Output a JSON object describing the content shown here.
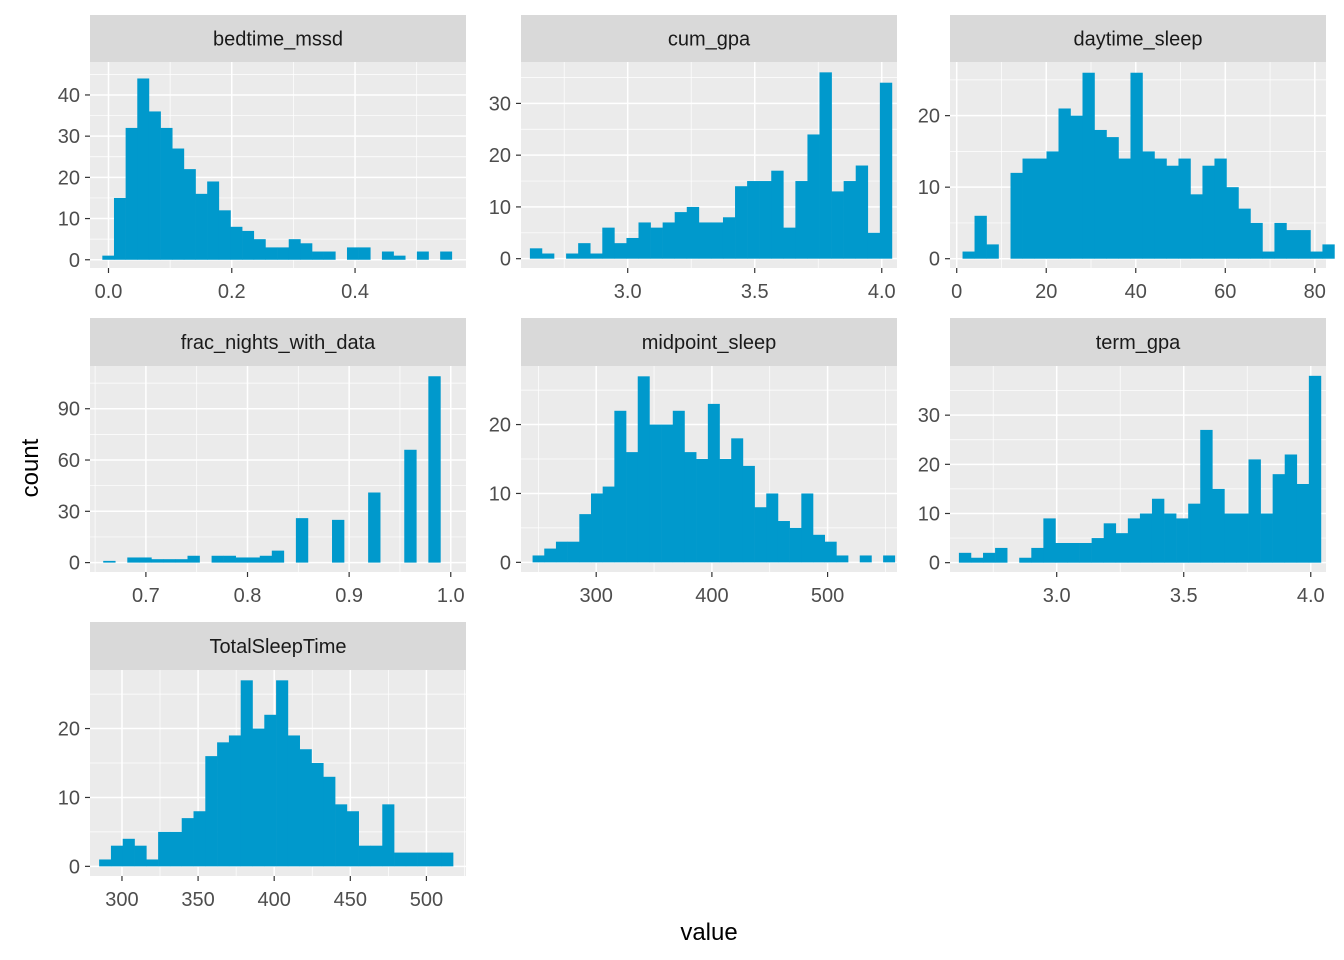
{
  "chart_data": {
    "type": "bar",
    "subtype": "faceted-histogram",
    "xlabel": "value",
    "ylabel": "count",
    "fill_color": "#0099CC",
    "panel_background": "#EBEBEB",
    "strip_background": "#D9D9D9",
    "grid_color": "#FFFFFF",
    "panels": [
      {
        "title": "bedtime_mssd",
        "xlim": [
          -0.03,
          0.58
        ],
        "ylim": [
          -2,
          48
        ],
        "xticks": [
          0.0,
          0.2,
          0.4
        ],
        "xtick_labels": [
          "0.0",
          "0.2",
          "0.4"
        ],
        "yticks": [
          0,
          10,
          20,
          30,
          40
        ],
        "ytick_labels": [
          "0",
          "10",
          "20",
          "30",
          "40"
        ],
        "bin_start": -0.01,
        "bin_width": 0.0189,
        "values": [
          1,
          15,
          32,
          44,
          36,
          32,
          27,
          22,
          16,
          19,
          12,
          8,
          7,
          5,
          3,
          3,
          5,
          4,
          2,
          2,
          0,
          3,
          3,
          0,
          2,
          1,
          0,
          2,
          0,
          2
        ]
      },
      {
        "title": "cum_gpa",
        "xlim": [
          2.58,
          4.06
        ],
        "ylim": [
          -1.8,
          38
        ],
        "xticks": [
          3.0,
          3.5,
          4.0
        ],
        "xtick_labels": [
          "3.0",
          "3.5",
          "4.0"
        ],
        "yticks": [
          0,
          10,
          20,
          30
        ],
        "ytick_labels": [
          "0",
          "10",
          "20",
          "30"
        ],
        "bin_start": 2.615,
        "bin_width": 0.0475,
        "values": [
          2,
          1,
          0,
          1,
          3,
          1,
          6,
          3,
          4,
          7,
          6,
          7,
          9,
          10,
          7,
          7,
          8,
          14,
          15,
          15,
          17,
          6,
          15,
          24,
          36,
          13,
          15,
          18,
          5,
          34
        ]
      },
      {
        "title": "daytime_sleep",
        "xlim": [
          -1.5,
          82.5
        ],
        "ylim": [
          -1.3,
          27.5
        ],
        "xticks": [
          0,
          20,
          40,
          60,
          80
        ],
        "xtick_labels": [
          "0",
          "20",
          "40",
          "60",
          "80"
        ],
        "yticks": [
          0,
          10,
          20
        ],
        "ytick_labels": [
          "0",
          "10",
          "20"
        ],
        "bin_start": 1.3,
        "bin_width": 2.68,
        "values": [
          1,
          6,
          2,
          0,
          12,
          14,
          14,
          15,
          21,
          20,
          26,
          18,
          17,
          14,
          26,
          15,
          14,
          13,
          14,
          9,
          13,
          14,
          10,
          7,
          5,
          1,
          5,
          4,
          4,
          1,
          2
        ]
      },
      {
        "title": "frac_nights_with_data",
        "xlim": [
          0.645,
          1.015
        ],
        "ylim": [
          -5.5,
          115
        ],
        "xticks": [
          0.7,
          0.8,
          0.9,
          1.0
        ],
        "xtick_labels": [
          "0.7",
          "0.8",
          "0.9",
          "1.0"
        ],
        "yticks": [
          0,
          30,
          60,
          90
        ],
        "ytick_labels": [
          "0",
          "30",
          "60",
          "90"
        ],
        "bin_start": 0.658,
        "bin_width": 0.01185,
        "values": [
          1,
          0,
          3,
          3,
          2,
          2,
          2,
          4,
          0,
          4,
          4,
          3,
          3,
          4,
          7,
          0,
          26,
          0,
          0,
          25,
          0,
          0,
          41,
          0,
          0,
          66,
          0,
          109
        ]
      },
      {
        "title": "midpoint_sleep",
        "xlim": [
          235,
          560
        ],
        "ylim": [
          -1.4,
          28.5
        ],
        "xticks": [
          300,
          400,
          500
        ],
        "xtick_labels": [
          "300",
          "400",
          "500"
        ],
        "yticks": [
          0,
          10,
          20
        ],
        "ytick_labels": [
          "0",
          "10",
          "20"
        ],
        "bin_start": 245,
        "bin_width": 10.1,
        "values": [
          1,
          2,
          3,
          3,
          7,
          10,
          11,
          22,
          16,
          27,
          20,
          20,
          22,
          16,
          15,
          23,
          15,
          18,
          14,
          8,
          10,
          6,
          5,
          10,
          4,
          3,
          1,
          0,
          1,
          0,
          1
        ]
      },
      {
        "title": "term_gpa",
        "xlim": [
          2.58,
          4.06
        ],
        "ylim": [
          -1.9,
          40
        ],
        "xticks": [
          3.0,
          3.5,
          4.0
        ],
        "xtick_labels": [
          "3.0",
          "3.5",
          "4.0"
        ],
        "yticks": [
          0,
          10,
          20,
          30
        ],
        "ytick_labels": [
          "0",
          "10",
          "20",
          "30"
        ],
        "bin_start": 2.615,
        "bin_width": 0.0475,
        "values": [
          2,
          1,
          2,
          3,
          0,
          1,
          3,
          9,
          4,
          4,
          4,
          5,
          8,
          6,
          9,
          10,
          13,
          10,
          9,
          12,
          27,
          15,
          10,
          10,
          21,
          10,
          18,
          22,
          16,
          38
        ]
      },
      {
        "title": "TotalSleepTime",
        "xlim": [
          279,
          526
        ],
        "ylim": [
          -1.4,
          28.5
        ],
        "xticks": [
          300,
          350,
          400,
          450,
          500
        ],
        "xtick_labels": [
          "300",
          "350",
          "400",
          "450",
          "500"
        ],
        "yticks": [
          0,
          10,
          20
        ],
        "ytick_labels": [
          "0",
          "10",
          "20"
        ],
        "bin_start": 285,
        "bin_width": 7.75,
        "values": [
          1,
          3,
          4,
          3,
          1,
          5,
          5,
          7,
          8,
          16,
          18,
          19,
          27,
          20,
          22,
          27,
          19,
          17,
          15,
          13,
          9,
          8,
          3,
          3,
          9,
          2,
          2,
          2,
          2,
          2
        ]
      }
    ]
  }
}
